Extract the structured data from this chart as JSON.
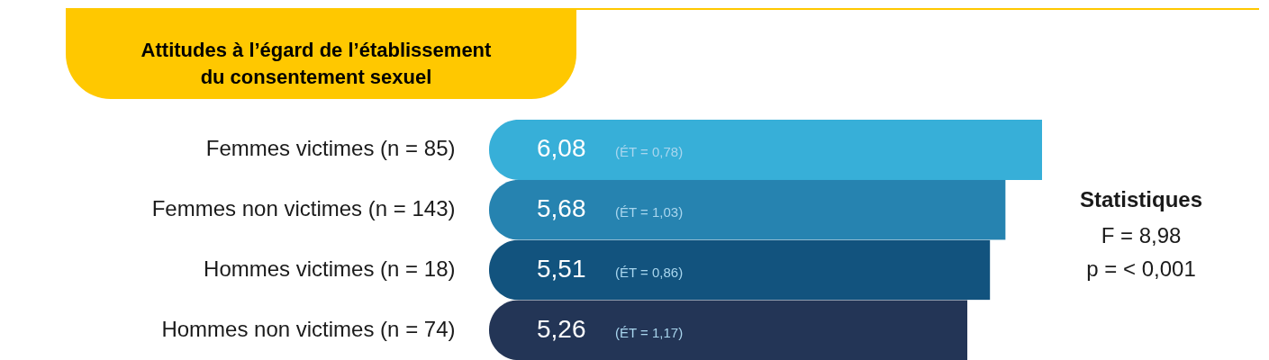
{
  "chart_data": {
    "type": "bar",
    "orientation": "horizontal",
    "title": "Attitudes à l’égard de l’établissement\ndu consentement sexuel",
    "categories": [
      "Femmes victimes (n = 85)",
      "Femmes non victimes (n = 143)",
      "Hommes victimes (n = 18)",
      "Hommes non victimes (n = 74)"
    ],
    "values": [
      6.08,
      5.68,
      5.51,
      5.26
    ],
    "value_labels": [
      "6,08",
      "5,68",
      "5,51",
      "5,26"
    ],
    "colors": [
      "#37afd8",
      "#2683b0",
      "#12537e",
      "#233556"
    ],
    "annotations": [
      "(ÉT = 0,78)",
      "(ÉT = 1,03)",
      "(ÉT = 0,86)",
      "(ÉT = 1,17)",
      "Statistiques",
      "F = 8,98",
      "p = < 0,001"
    ],
    "legend": false
  }
}
